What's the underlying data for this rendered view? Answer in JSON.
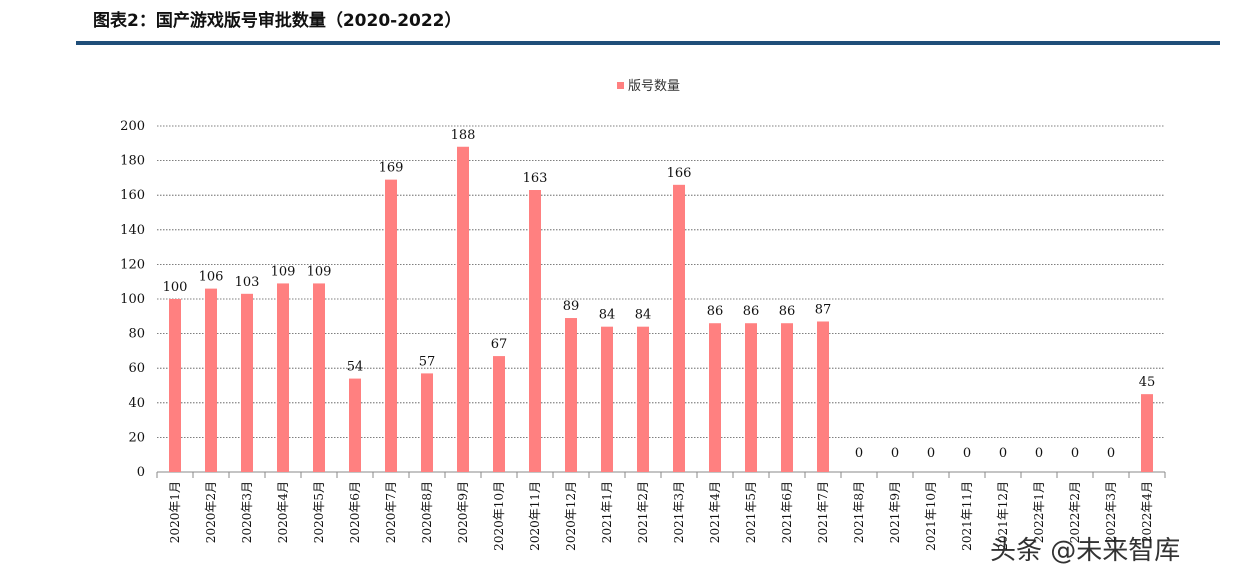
{
  "header": {
    "title": "图表2：国产游戏版号审批数量（2020-2022）",
    "rule_color": "#1f4e79"
  },
  "watermark": "头条 @未来智库",
  "chart_data": {
    "type": "bar",
    "title": "",
    "xlabel": "",
    "ylabel": "",
    "ylim": [
      0,
      200
    ],
    "yticks": [
      0,
      20,
      40,
      60,
      80,
      100,
      120,
      140,
      160,
      180,
      200
    ],
    "grid": true,
    "legend": "top-center",
    "categories": [
      "2020年1月",
      "2020年2月",
      "2020年3月",
      "2020年4月",
      "2020年5月",
      "2020年6月",
      "2020年7月",
      "2020年8月",
      "2020年9月",
      "2020年10月",
      "2020年11月",
      "2020年12月",
      "2021年1月",
      "2021年2月",
      "2021年3月",
      "2021年4月",
      "2021年5月",
      "2021年6月",
      "2021年7月",
      "2021年8月",
      "2021年9月",
      "2021年10月",
      "2021年11月",
      "2021年12月",
      "2022年1月",
      "2022年2月",
      "2022年3月",
      "2022年4月"
    ],
    "series": [
      {
        "name": "版号数量",
        "color": "#ff8080",
        "values": [
          100,
          106,
          103,
          109,
          109,
          54,
          169,
          57,
          188,
          67,
          163,
          89,
          84,
          84,
          166,
          86,
          86,
          86,
          87,
          0,
          0,
          0,
          0,
          0,
          0,
          0,
          0,
          45
        ]
      }
    ]
  }
}
